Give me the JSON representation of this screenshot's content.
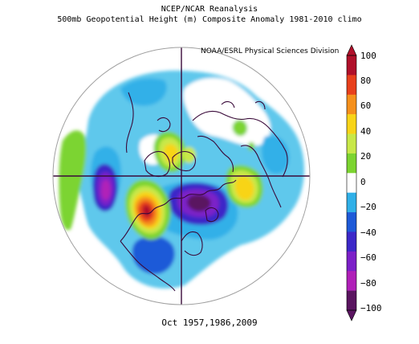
{
  "header": {
    "title_line1": "NCEP/NCAR Reanalysis",
    "title_line2": "500mb Geopotential Height (m) Composite Anomaly 1981-2010 climo",
    "credit": "NOAA/ESRL Physical Sciences Division"
  },
  "caption": "Oct 1957,1986,2009",
  "colorbar": {
    "labels": [
      "100",
      "80",
      "60",
      "40",
      "20",
      "0",
      "−20",
      "−40",
      "−60",
      "−80",
      "−100"
    ],
    "colors": [
      "#b0102a",
      "#e8401c",
      "#f5901c",
      "#f8d418",
      "#c8e848",
      "#7cd430",
      "#ffffff",
      "#30b0e8",
      "#1e5ad8",
      "#3c28c8",
      "#7c20c8",
      "#b020b8",
      "#5a1460"
    ]
  },
  "map": {
    "projection": "polar stereographic, North Pole",
    "palette": {
      "pos20": "#7cd430",
      "pos40": "#c8e848",
      "pos60": "#f8d418",
      "pos80": "#f5901c",
      "pos100": "#e8401c",
      "pos120": "#b0102a",
      "neg20": "#5fc8ec",
      "neg40": "#30b0e8",
      "neg60": "#1e5ad8",
      "neg80": "#3c28c8",
      "neg100": "#7c20c8",
      "neg120": "#b020b8",
      "neg140": "#5a1460",
      "coast": "#3a0a3a"
    }
  }
}
